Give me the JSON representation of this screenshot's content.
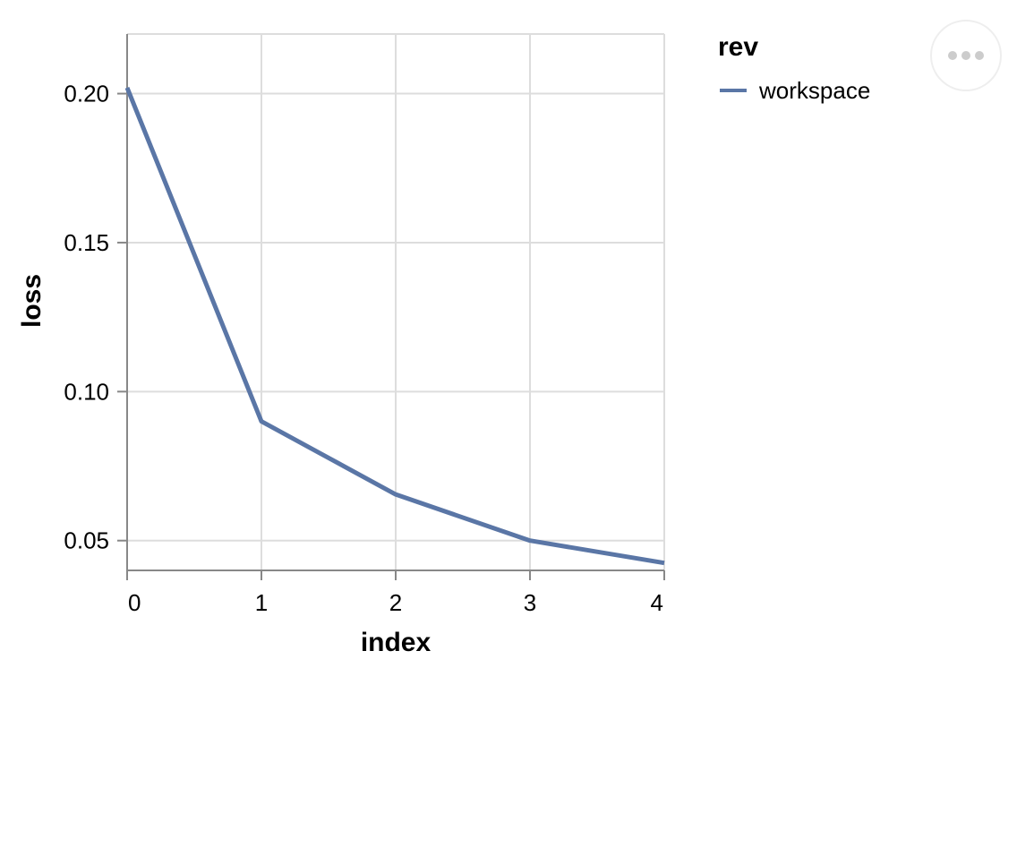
{
  "chart_data": {
    "type": "line",
    "x": [
      0,
      1,
      2,
      3,
      4
    ],
    "series": [
      {
        "name": "workspace",
        "values": [
          0.202,
          0.09,
          0.0655,
          0.05,
          0.0425
        ],
        "color": "#5a76a6"
      }
    ],
    "xlabel": "index",
    "ylabel": "loss",
    "xticks": [
      "0",
      "1",
      "2",
      "3",
      "4"
    ],
    "yticks": [
      "0.05",
      "0.10",
      "0.15",
      "0.20"
    ],
    "xlim": [
      0,
      4
    ],
    "ylim": [
      0.04,
      0.22
    ],
    "grid": true,
    "legend": {
      "title": "rev",
      "placement": "right"
    }
  },
  "actions_menu": {
    "icon": "more-horizontal-icon"
  }
}
